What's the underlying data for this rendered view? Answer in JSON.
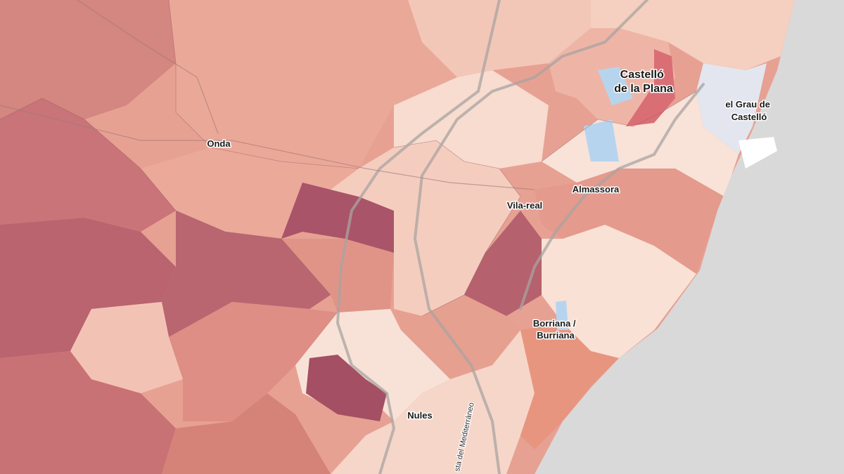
{
  "map": {
    "labels": [
      {
        "lines": [
          "Castelló",
          "de la Plana"
        ]
      },
      {
        "lines": [
          "el Grau de",
          "Castelló"
        ]
      },
      {
        "lines": [
          "Onda"
        ]
      },
      {
        "lines": [
          "Almassora"
        ]
      },
      {
        "lines": [
          "Vila-real"
        ]
      },
      {
        "lines": [
          "Borriana /",
          "Burriana"
        ]
      },
      {
        "lines": [
          "Nules"
        ]
      }
    ],
    "road_label": "sta del Mediterráneo"
  }
}
